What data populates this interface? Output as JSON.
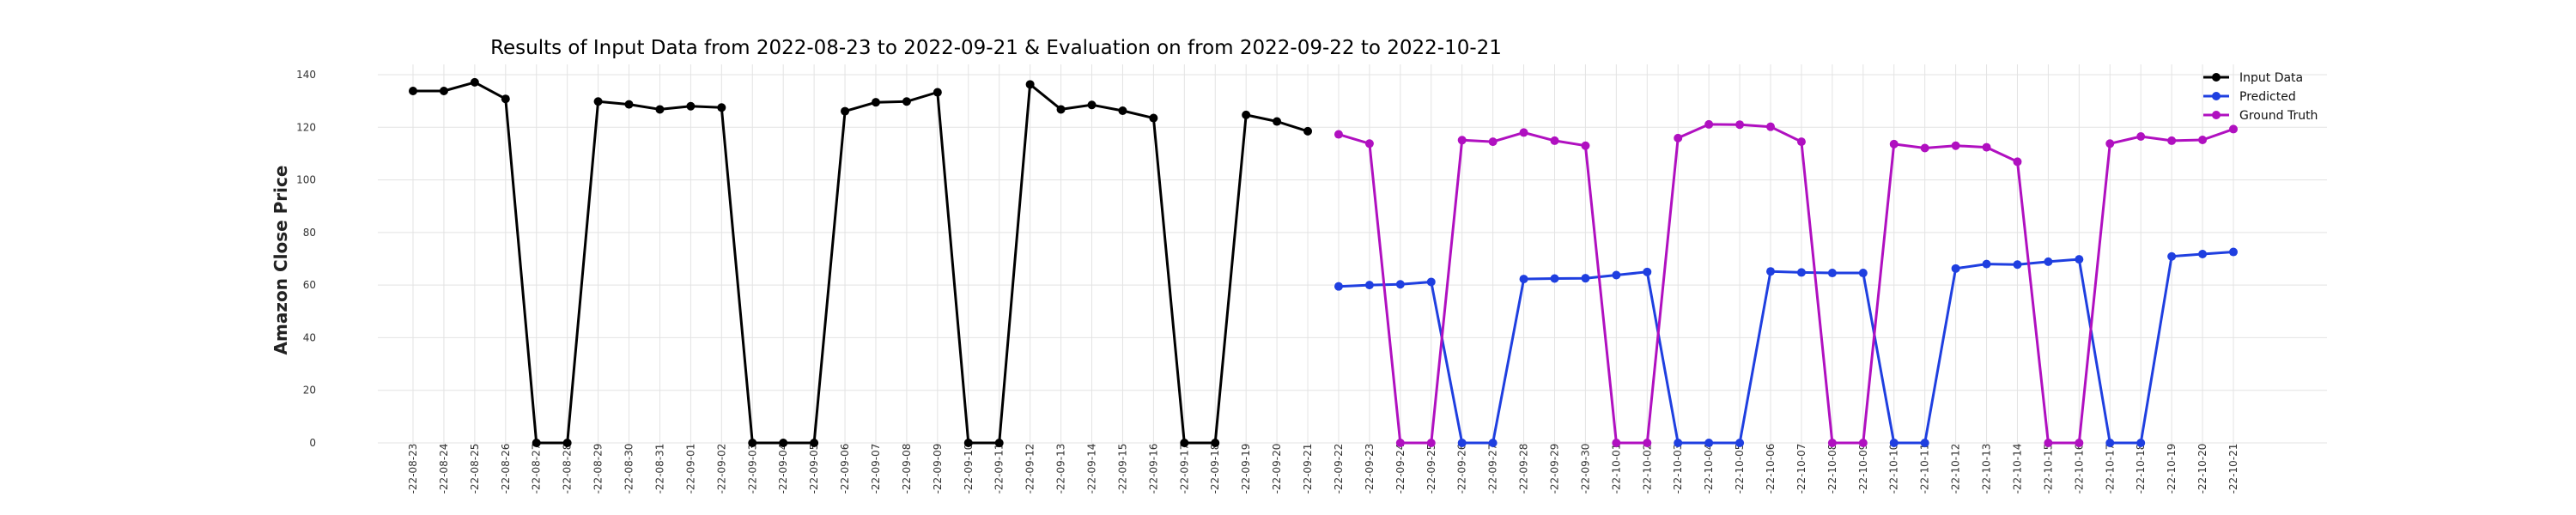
{
  "chart_data": {
    "type": "line",
    "title": "Results of Input Data from 2022-08-23 to 2022-09-21 & Evaluation on from 2022-09-22 to 2022-10-21",
    "xlabel": "",
    "ylabel": "Amazon Close Price",
    "ylim": [
      0,
      140
    ],
    "yticks": [
      0,
      20,
      40,
      60,
      80,
      100,
      120,
      140
    ],
    "grid": true,
    "legend_position": "top-right",
    "x": [
      "2022-08-23",
      "2022-08-24",
      "2022-08-25",
      "2022-08-26",
      "2022-08-27",
      "2022-08-28",
      "2022-08-29",
      "2022-08-30",
      "2022-08-31",
      "2022-09-01",
      "2022-09-02",
      "2022-09-03",
      "2022-09-04",
      "2022-09-05",
      "2022-09-06",
      "2022-09-07",
      "2022-09-08",
      "2022-09-09",
      "2022-09-10",
      "2022-09-11",
      "2022-09-12",
      "2022-09-13",
      "2022-09-14",
      "2022-09-15",
      "2022-09-16",
      "2022-09-17",
      "2022-09-18",
      "2022-09-19",
      "2022-09-20",
      "2022-09-21",
      "2022-09-22",
      "2022-09-23",
      "2022-09-24",
      "2022-09-25",
      "2022-09-26",
      "2022-09-27",
      "2022-09-28",
      "2022-09-29",
      "2022-09-30",
      "2022-10-01",
      "2022-10-02",
      "2022-10-03",
      "2022-10-04",
      "2022-10-05",
      "2022-10-06",
      "2022-10-07",
      "2022-10-08",
      "2022-10-09",
      "2022-10-10",
      "2022-10-11",
      "2022-10-12",
      "2022-10-13",
      "2022-10-14",
      "2022-10-15",
      "2022-10-16",
      "2022-10-17",
      "2022-10-18",
      "2022-10-19",
      "2022-10-20",
      "2022-10-21"
    ],
    "x_tick_labels": [
      "-22-08-23",
      "-22-08-24",
      "-22-08-25",
      "-22-08-26",
      "-22-08-27",
      "-22-08-28",
      "-22-08-29",
      "-22-08-30",
      "-22-08-31",
      "-22-09-01",
      "-22-09-02",
      "-22-09-03",
      "-22-09-04",
      "-22-09-05",
      "-22-09-06",
      "-22-09-07",
      "-22-09-08",
      "-22-09-09",
      "-22-09-10",
      "-22-09-11",
      "-22-09-12",
      "-22-09-13",
      "-22-09-14",
      "-22-09-15",
      "-22-09-16",
      "-22-09-17",
      "-22-09-18",
      "-22-09-19",
      "-22-09-20",
      "-22-09-21",
      "-22-09-22",
      "-22-09-23",
      "-22-09-24",
      "-22-09-25",
      "-22-09-26",
      "-22-09-27",
      "-22-09-28",
      "-22-09-29",
      "-22-09-30",
      "-22-10-01",
      "-22-10-02",
      "-22-10-03",
      "-22-10-04",
      "-22-10-05",
      "-22-10-06",
      "-22-10-07",
      "-22-10-08",
      "-22-10-09",
      "-22-10-10",
      "-22-10-11",
      "-22-10-12",
      "-22-10-13",
      "-22-10-14",
      "-22-10-15",
      "-22-10-16",
      "-22-10-17",
      "-22-10-18",
      "-22-10-19",
      "-22-10-20",
      "-22-10-21"
    ],
    "series": [
      {
        "name": "Input Data",
        "color": "#000000",
        "x": [
          "2022-08-23",
          "2022-08-24",
          "2022-08-25",
          "2022-08-26",
          "2022-08-27",
          "2022-08-28",
          "2022-08-29",
          "2022-08-30",
          "2022-08-31",
          "2022-09-01",
          "2022-09-02",
          "2022-09-03",
          "2022-09-04",
          "2022-09-05",
          "2022-09-06",
          "2022-09-07",
          "2022-09-08",
          "2022-09-09",
          "2022-09-10",
          "2022-09-11",
          "2022-09-12",
          "2022-09-13",
          "2022-09-14",
          "2022-09-15",
          "2022-09-16",
          "2022-09-17",
          "2022-09-18",
          "2022-09-19",
          "2022-09-20",
          "2022-09-21"
        ],
        "values": [
          133.8,
          133.8,
          137.1,
          130.8,
          0,
          0,
          129.8,
          128.7,
          126.8,
          128.0,
          127.5,
          0,
          0,
          0,
          126.1,
          129.5,
          129.8,
          133.3,
          0,
          0,
          136.3,
          126.8,
          128.5,
          126.3,
          123.5,
          0,
          0,
          124.7,
          122.2,
          118.5
        ]
      },
      {
        "name": "Predicted",
        "color": "#1f3fe0",
        "x": [
          "2022-09-22",
          "2022-09-23",
          "2022-09-24",
          "2022-09-25",
          "2022-09-26",
          "2022-09-27",
          "2022-09-28",
          "2022-09-29",
          "2022-09-30",
          "2022-10-01",
          "2022-10-02",
          "2022-10-03",
          "2022-10-04",
          "2022-10-05",
          "2022-10-06",
          "2022-10-07",
          "2022-10-08",
          "2022-10-09",
          "2022-10-10",
          "2022-10-11",
          "2022-10-12",
          "2022-10-13",
          "2022-10-14",
          "2022-10-15",
          "2022-10-16",
          "2022-10-17",
          "2022-10-18",
          "2022-10-19",
          "2022-10-20",
          "2022-10-21"
        ],
        "values": [
          59.5,
          60.0,
          60.3,
          61.2,
          0,
          0,
          62.3,
          62.5,
          62.6,
          63.8,
          65.0,
          0,
          0,
          0,
          65.2,
          64.8,
          64.6,
          64.6,
          0,
          0,
          66.3,
          68.0,
          67.8,
          68.9,
          69.8,
          0,
          0,
          70.9,
          71.8,
          72.6
        ]
      },
      {
        "name": "Ground Truth",
        "color": "#b010c0",
        "x": [
          "2022-09-22",
          "2022-09-23",
          "2022-09-24",
          "2022-09-25",
          "2022-09-26",
          "2022-09-27",
          "2022-09-28",
          "2022-09-29",
          "2022-09-30",
          "2022-10-01",
          "2022-10-02",
          "2022-10-03",
          "2022-10-04",
          "2022-10-05",
          "2022-10-06",
          "2022-10-07",
          "2022-10-08",
          "2022-10-09",
          "2022-10-10",
          "2022-10-11",
          "2022-10-12",
          "2022-10-13",
          "2022-10-14",
          "2022-10-15",
          "2022-10-16",
          "2022-10-17",
          "2022-10-18",
          "2022-10-19",
          "2022-10-20",
          "2022-10-21"
        ],
        "values": [
          117.3,
          113.8,
          0,
          0,
          115.1,
          114.5,
          118.0,
          114.9,
          113.0,
          0,
          0,
          115.9,
          121.1,
          121.0,
          120.2,
          114.5,
          0,
          0,
          113.6,
          112.1,
          113.0,
          112.4,
          106.9,
          0,
          0,
          113.8,
          116.5,
          114.9,
          115.2,
          119.3
        ]
      }
    ]
  }
}
